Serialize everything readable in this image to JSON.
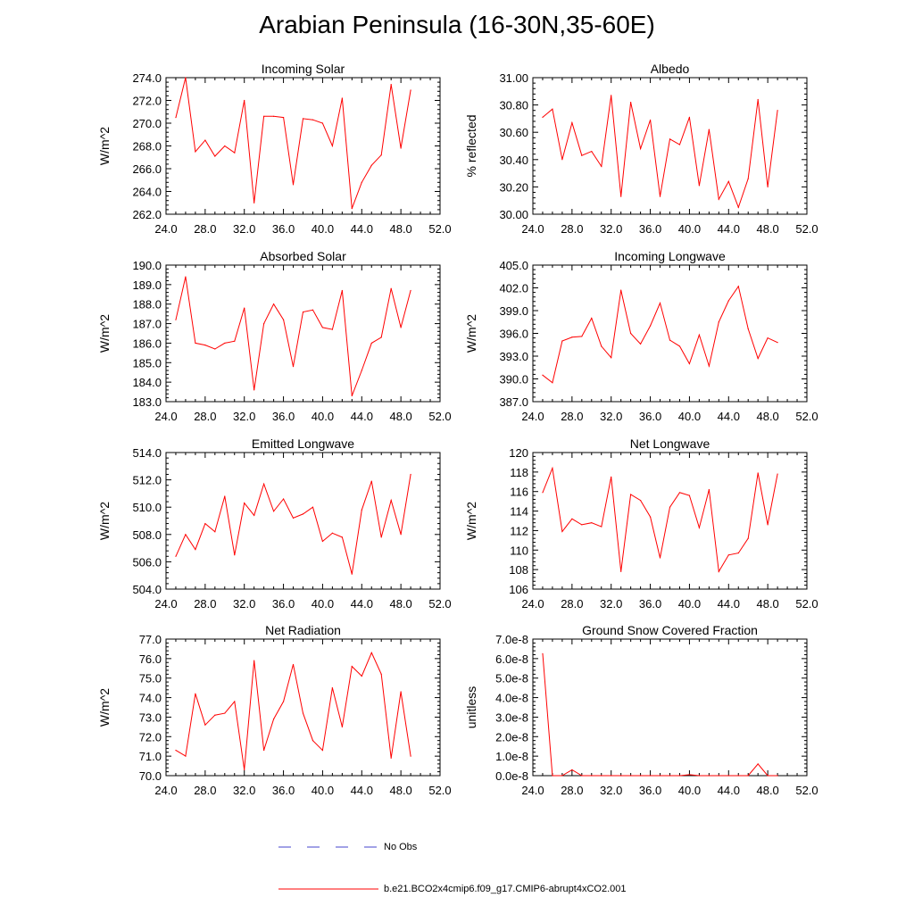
{
  "title": "Arabian Peninsula (16-30N,35-60E)",
  "colors": {
    "model": "#ff0000",
    "obs": "#4444cc",
    "axis": "#000000"
  },
  "legend": {
    "obs_label": "No Obs",
    "model_label": "b.e21.BCO2x4cmip6.f09_g17.CMIP6-abrupt4xCO2.001"
  },
  "chart_data": [
    {
      "type": "line",
      "title": "Incoming Solar",
      "ylabel": "W/m^2",
      "xlim": [
        24,
        52
      ],
      "ylim": [
        262,
        274
      ],
      "xticks": [
        "24.0",
        "28.0",
        "32.0",
        "36.0",
        "40.0",
        "44.0",
        "48.0",
        "52.0"
      ],
      "yticks": [
        "262.0",
        "264.0",
        "266.0",
        "268.0",
        "270.0",
        "272.0",
        "274.0"
      ],
      "x": [
        25,
        26,
        27,
        28,
        29,
        30,
        31,
        32,
        33,
        34,
        35,
        36,
        37,
        38,
        39,
        40,
        41,
        42,
        43,
        44,
        45,
        46,
        47,
        48,
        49
      ],
      "series": [
        {
          "values": [
            270.5,
            274.0,
            267.5,
            268.5,
            267.1,
            268.0,
            267.4,
            272.0,
            263.0,
            270.6,
            270.6,
            270.5,
            264.6,
            270.4,
            270.3,
            270.0,
            268.0,
            272.2,
            262.5,
            264.8,
            266.3,
            267.2,
            273.4,
            267.8,
            272.9
          ]
        }
      ]
    },
    {
      "type": "line",
      "title": "Albedo",
      "ylabel": "% reflected",
      "xlim": [
        24,
        52
      ],
      "ylim": [
        30.0,
        31.0
      ],
      "xticks": [
        "24.0",
        "28.0",
        "32.0",
        "36.0",
        "40.0",
        "44.0",
        "48.0",
        "52.0"
      ],
      "yticks": [
        "30.00",
        "30.20",
        "30.40",
        "30.60",
        "30.80",
        "31.00"
      ],
      "x": [
        25,
        26,
        27,
        28,
        29,
        30,
        31,
        32,
        33,
        34,
        35,
        36,
        37,
        38,
        39,
        40,
        41,
        42,
        43,
        44,
        45,
        46,
        47,
        48,
        49
      ],
      "series": [
        {
          "values": [
            30.71,
            30.77,
            30.4,
            30.67,
            30.43,
            30.46,
            30.35,
            30.87,
            30.13,
            30.82,
            30.48,
            30.69,
            30.13,
            30.55,
            30.51,
            30.71,
            30.21,
            30.62,
            30.11,
            30.24,
            30.05,
            30.26,
            30.84,
            30.2,
            30.76
          ]
        }
      ]
    },
    {
      "type": "line",
      "title": "Absorbed Solar",
      "ylabel": "W/m^2",
      "xlim": [
        24,
        52
      ],
      "ylim": [
        183,
        190
      ],
      "xticks": [
        "24.0",
        "28.0",
        "32.0",
        "36.0",
        "40.0",
        "44.0",
        "48.0",
        "52.0"
      ],
      "yticks": [
        "183.0",
        "184.0",
        "185.0",
        "186.0",
        "187.0",
        "188.0",
        "189.0",
        "190.0"
      ],
      "x": [
        25,
        26,
        27,
        28,
        29,
        30,
        31,
        32,
        33,
        34,
        35,
        36,
        37,
        38,
        39,
        40,
        41,
        42,
        43,
        44,
        45,
        46,
        47,
        48,
        49
      ],
      "series": [
        {
          "values": [
            187.2,
            189.4,
            186.0,
            185.9,
            185.7,
            186.0,
            186.1,
            187.8,
            183.6,
            187.0,
            188.0,
            187.2,
            184.8,
            187.6,
            187.7,
            186.8,
            186.7,
            188.7,
            183.3,
            184.6,
            186.0,
            186.3,
            188.8,
            186.8,
            188.7
          ]
        }
      ]
    },
    {
      "type": "line",
      "title": "Incoming Longwave",
      "ylabel": "W/m^2",
      "xlim": [
        24,
        52
      ],
      "ylim": [
        387,
        405
      ],
      "xticks": [
        "24.0",
        "28.0",
        "32.0",
        "36.0",
        "40.0",
        "44.0",
        "48.0",
        "52.0"
      ],
      "yticks": [
        "387.0",
        "390.0",
        "393.0",
        "396.0",
        "399.0",
        "402.0",
        "405.0"
      ],
      "x": [
        25,
        26,
        27,
        28,
        29,
        30,
        31,
        32,
        33,
        34,
        35,
        36,
        37,
        38,
        39,
        40,
        41,
        42,
        43,
        44,
        45,
        46,
        47,
        48,
        49
      ],
      "series": [
        {
          "values": [
            390.5,
            389.5,
            395.0,
            395.5,
            395.6,
            398.0,
            394.3,
            392.8,
            401.7,
            396.0,
            394.6,
            397.0,
            400.0,
            395.1,
            394.3,
            392.0,
            395.8,
            391.7,
            397.5,
            400.3,
            402.2,
            396.6,
            392.7,
            395.4,
            394.8
          ]
        }
      ]
    },
    {
      "type": "line",
      "title": "Emitted Longwave",
      "ylabel": "W/m^2",
      "xlim": [
        24,
        52
      ],
      "ylim": [
        504,
        514
      ],
      "xticks": [
        "24.0",
        "28.0",
        "32.0",
        "36.0",
        "40.0",
        "44.0",
        "48.0",
        "52.0"
      ],
      "yticks": [
        "504.0",
        "506.0",
        "508.0",
        "510.0",
        "512.0",
        "514.0"
      ],
      "x": [
        25,
        26,
        27,
        28,
        29,
        30,
        31,
        32,
        33,
        34,
        35,
        36,
        37,
        38,
        39,
        40,
        41,
        42,
        43,
        44,
        45,
        46,
        47,
        48,
        49
      ],
      "series": [
        {
          "values": [
            506.4,
            508.0,
            506.9,
            508.8,
            508.2,
            510.8,
            506.5,
            510.3,
            509.4,
            511.7,
            509.7,
            510.6,
            509.2,
            509.5,
            510.0,
            507.5,
            508.1,
            507.8,
            505.1,
            509.8,
            511.9,
            507.8,
            510.5,
            508.0,
            512.4
          ]
        }
      ]
    },
    {
      "type": "line",
      "title": "Net Longwave",
      "ylabel": "W/m^2",
      "xlim": [
        24,
        52
      ],
      "ylim": [
        106,
        120
      ],
      "xticks": [
        "24.0",
        "28.0",
        "32.0",
        "36.0",
        "40.0",
        "44.0",
        "48.0",
        "52.0"
      ],
      "yticks": [
        "106",
        "108",
        "110",
        "112",
        "114",
        "116",
        "118",
        "120"
      ],
      "x": [
        25,
        26,
        27,
        28,
        29,
        30,
        31,
        32,
        33,
        34,
        35,
        36,
        37,
        38,
        39,
        40,
        41,
        42,
        43,
        44,
        45,
        46,
        47,
        48,
        49
      ],
      "series": [
        {
          "values": [
            115.9,
            118.4,
            111.9,
            113.2,
            112.6,
            112.8,
            112.4,
            117.5,
            107.8,
            115.7,
            115.1,
            113.4,
            109.2,
            114.4,
            115.9,
            115.6,
            112.3,
            116.2,
            107.8,
            109.5,
            109.7,
            111.2,
            117.9,
            112.6,
            117.8
          ]
        }
      ]
    },
    {
      "type": "line",
      "title": "Net Radiation",
      "ylabel": "W/m^2",
      "xlim": [
        24,
        52
      ],
      "ylim": [
        70,
        77
      ],
      "xticks": [
        "24.0",
        "28.0",
        "32.0",
        "36.0",
        "40.0",
        "44.0",
        "48.0",
        "52.0"
      ],
      "yticks": [
        "70.0",
        "71.0",
        "72.0",
        "73.0",
        "74.0",
        "75.0",
        "76.0",
        "77.0"
      ],
      "x": [
        25,
        26,
        27,
        28,
        29,
        30,
        31,
        32,
        33,
        34,
        35,
        36,
        37,
        38,
        39,
        40,
        41,
        42,
        43,
        44,
        45,
        46,
        47,
        48,
        49
      ],
      "series": [
        {
          "values": [
            71.3,
            71.0,
            74.2,
            72.6,
            73.1,
            73.2,
            73.8,
            70.3,
            75.9,
            71.3,
            72.9,
            73.8,
            75.7,
            73.2,
            71.8,
            71.3,
            74.5,
            72.5,
            75.6,
            75.1,
            76.3,
            75.2,
            70.9,
            74.3,
            71.0
          ]
        }
      ]
    },
    {
      "type": "line",
      "title": "Ground Snow Covered Fraction",
      "ylabel": "unitless",
      "xlim": [
        24,
        52
      ],
      "ylim": [
        0,
        7e-08
      ],
      "xticks": [
        "24.0",
        "28.0",
        "32.0",
        "36.0",
        "40.0",
        "44.0",
        "48.0",
        "52.0"
      ],
      "yticks": [
        "0.0e-8",
        "1.0e-8",
        "2.0e-8",
        "3.0e-8",
        "4.0e-8",
        "5.0e-8",
        "6.0e-8",
        "7.0e-8"
      ],
      "x": [
        25,
        26,
        27,
        28,
        29,
        30,
        31,
        32,
        33,
        34,
        35,
        36,
        37,
        38,
        39,
        40,
        41,
        42,
        43,
        44,
        45,
        46,
        47,
        48,
        49
      ],
      "series": [
        {
          "values": [
            6.25e-08,
            0,
            0,
            3e-09,
            0,
            0,
            0,
            0,
            0,
            0,
            0,
            0,
            0,
            0,
            0,
            5e-10,
            0,
            0,
            0,
            0,
            0,
            0,
            6e-09,
            0,
            0
          ]
        }
      ]
    }
  ]
}
